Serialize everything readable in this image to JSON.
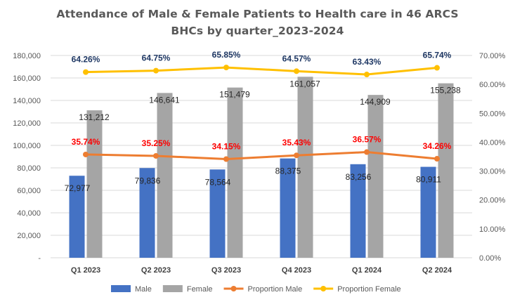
{
  "chart_data": {
    "type": "bar",
    "title_line1": "Attendance of Male & Female Patients to Health care in 46 ARCS",
    "title_line2": "BHCs by quarter_2023-2024",
    "categories": [
      "Q1 2023",
      "Q2 2023",
      "Q3 2023",
      "Q4 2023",
      "Q1 2024",
      "Q2 2024"
    ],
    "series": [
      {
        "name": "Male",
        "kind": "bar",
        "axis": "left",
        "color": "#4472C4",
        "values": [
          72977,
          79836,
          78564,
          88375,
          83256,
          80911
        ],
        "labels": [
          "72,977",
          "79,836",
          "78,564",
          "88,375",
          "83,256",
          "80,911"
        ]
      },
      {
        "name": "Female",
        "kind": "bar",
        "axis": "left",
        "color": "#A5A5A5",
        "values": [
          131212,
          146641,
          151479,
          161057,
          144909,
          155238
        ],
        "labels": [
          "131,212",
          "146,641",
          "151,479",
          "161,057",
          "144,909",
          "155,238"
        ]
      },
      {
        "name": "Proportion Male",
        "kind": "line",
        "axis": "right",
        "color": "#ED7D31",
        "label_color": "#FF0000",
        "values": [
          35.74,
          35.25,
          34.15,
          35.43,
          36.57,
          34.26
        ],
        "labels": [
          "35.74%",
          "35.25%",
          "34.15%",
          "35.43%",
          "36.57%",
          "34.26%"
        ]
      },
      {
        "name": "Proportion Female",
        "kind": "line",
        "axis": "right",
        "color": "#FFC000",
        "label_color": "#1F3864",
        "values": [
          64.26,
          64.75,
          65.85,
          64.57,
          63.43,
          65.74
        ],
        "labels": [
          "64.26%",
          "64.75%",
          "65.85%",
          "64.57%",
          "63.43%",
          "65.74%"
        ]
      }
    ],
    "y_left": {
      "min": 0,
      "max": 180000,
      "step": 20000,
      "ticks": [
        "-",
        "20,000",
        "40,000",
        "60,000",
        "80,000",
        "100,000",
        "120,000",
        "140,000",
        "160,000",
        "180,000"
      ]
    },
    "y_right": {
      "min": 0,
      "max": 70,
      "step": 10,
      "ticks": [
        "0.00%",
        "10.00%",
        "20.00%",
        "30.00%",
        "40.00%",
        "50.00%",
        "60.00%",
        "70.00%"
      ]
    },
    "grid": true,
    "legend_position": "bottom"
  }
}
